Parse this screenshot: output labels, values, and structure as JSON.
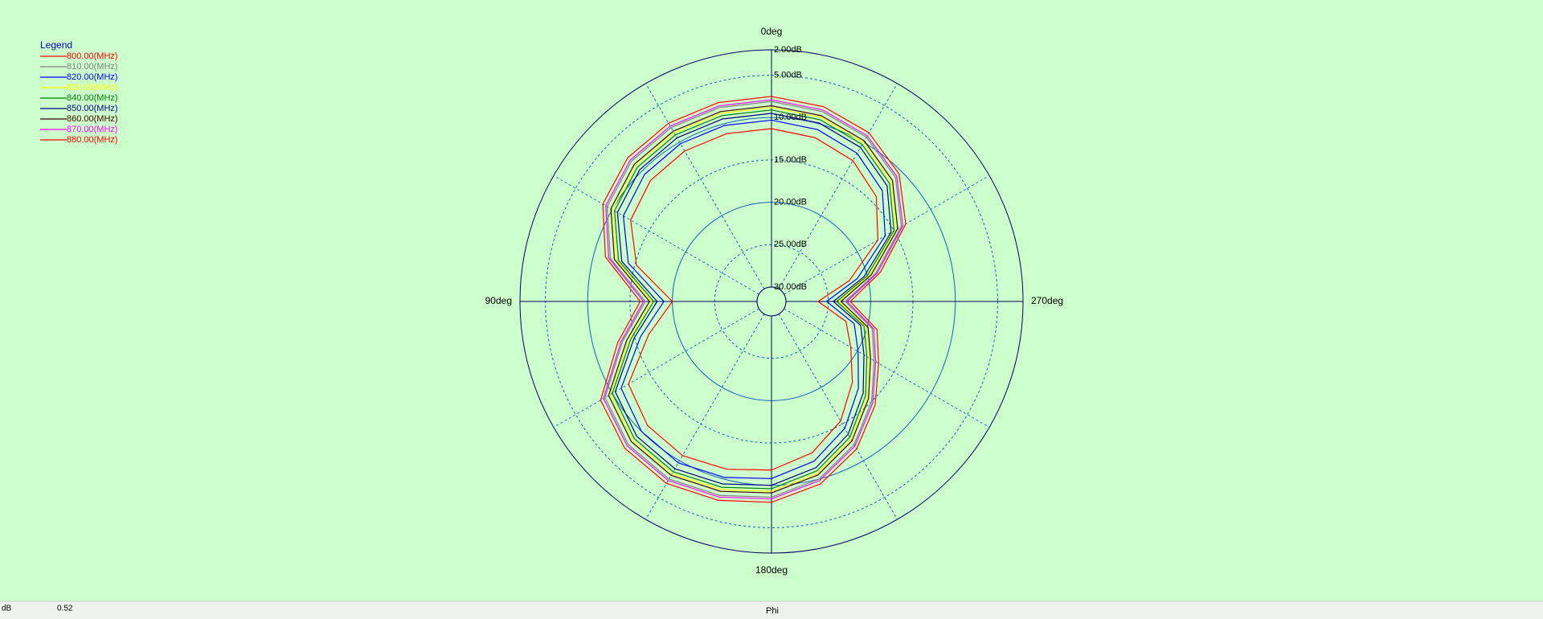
{
  "chart_data": {
    "type": "polar",
    "legend_title": "Legend",
    "legend_position": "upper-left",
    "xlabel": "Phi",
    "readout_unit": "dB",
    "readout_value": "0.52",
    "direction": "counterclockwise",
    "zero_location": "top",
    "theta": [
      0,
      15,
      30,
      45,
      60,
      75,
      90,
      105,
      120,
      135,
      150,
      165,
      180,
      195,
      210,
      225,
      240,
      255,
      270,
      285,
      300,
      315,
      330,
      345
    ],
    "rlim": [
      30,
      2
    ],
    "rticks": [
      {
        "value": 2,
        "label": "2.00dB"
      },
      {
        "value": 5,
        "label": "5.00dB"
      },
      {
        "value": 10,
        "label": "10.00dB"
      },
      {
        "value": 15,
        "label": "15.00dB"
      },
      {
        "value": 20,
        "label": "20.00dB"
      },
      {
        "value": 25,
        "label": "25.00dB"
      },
      {
        "value": 30,
        "label": "30.00dB"
      }
    ],
    "thetaticks": [
      {
        "value": 0,
        "label": "0deg"
      },
      {
        "value": 90,
        "label": "90deg"
      },
      {
        "value": 180,
        "label": "180deg"
      },
      {
        "value": 270,
        "label": "270deg"
      }
    ],
    "series": [
      {
        "name": "800.00(MHz)",
        "color": "#ff0000",
        "values": [
          7.5,
          7.4,
          7.4,
          7.7,
          8.7,
          11.4,
          16.2,
          12.9,
          8.4,
          7.2,
          6.9,
          7.4,
          8.0,
          9.4,
          11.6,
          14.4,
          17.1,
          18.8,
          22.4,
          18.4,
          13.4,
          10.4,
          8.7,
          7.9
        ]
      },
      {
        "name": "810.00(MHz)",
        "color": "#808080",
        "values": [
          8.1,
          8.0,
          8.0,
          8.3,
          9.3,
          12.0,
          16.8,
          13.5,
          9.0,
          7.8,
          7.5,
          8.0,
          8.6,
          10.0,
          12.2,
          15.0,
          17.7,
          19.4,
          23.0,
          19.0,
          14.0,
          11.0,
          9.3,
          8.5
        ]
      },
      {
        "name": "820.00(MHz)",
        "color": "#0000ff",
        "values": [
          10.3,
          10.2,
          10.2,
          10.5,
          11.5,
          14.2,
          19.0,
          15.7,
          11.2,
          10.0,
          9.7,
          10.2,
          10.8,
          12.2,
          14.4,
          17.2,
          19.9,
          21.6,
          25.2,
          21.2,
          16.2,
          13.2,
          11.5,
          10.7
        ]
      },
      {
        "name": "830.00(MHz)",
        "color": "#ffff00",
        "values": [
          8.8,
          8.7,
          8.7,
          9.0,
          10.0,
          12.7,
          17.5,
          14.2,
          9.7,
          8.5,
          8.2,
          8.7,
          9.3,
          10.7,
          12.9,
          15.7,
          18.4,
          20.1,
          23.7,
          19.7,
          14.7,
          11.7,
          10.0,
          9.2
        ]
      },
      {
        "name": "840.00(MHz)",
        "color": "#008000",
        "values": [
          9.1,
          9.0,
          9.0,
          9.3,
          10.3,
          13.0,
          17.8,
          14.5,
          10.0,
          8.8,
          8.5,
          9.0,
          9.6,
          11.0,
          13.2,
          16.0,
          18.7,
          20.4,
          24.0,
          20.0,
          15.0,
          12.0,
          10.3,
          9.5
        ]
      },
      {
        "name": "850.00(MHz)",
        "color": "#000080",
        "values": [
          9.5,
          9.4,
          9.4,
          9.7,
          10.7,
          13.4,
          18.2,
          14.9,
          10.4,
          9.2,
          8.9,
          9.4,
          10.0,
          11.4,
          13.6,
          16.4,
          19.1,
          20.8,
          24.4,
          20.4,
          15.4,
          12.4,
          10.7,
          9.9
        ]
      },
      {
        "name": "860.00(MHz)",
        "color": "#400000",
        "values": [
          8.6,
          8.5,
          8.5,
          8.8,
          9.8,
          12.5,
          17.3,
          14.0,
          9.5,
          8.3,
          8.0,
          8.5,
          9.1,
          10.5,
          12.7,
          15.5,
          18.2,
          19.9,
          23.5,
          19.5,
          14.5,
          11.5,
          9.8,
          9.0
        ]
      },
      {
        "name": "870.00(MHz)",
        "color": "#ff00ff",
        "values": [
          7.9,
          7.8,
          7.8,
          8.1,
          9.1,
          11.8,
          16.6,
          13.3,
          8.8,
          7.6,
          7.3,
          7.8,
          8.4,
          9.8,
          12.0,
          14.8,
          17.5,
          19.2,
          22.8,
          18.8,
          13.8,
          10.8,
          9.1,
          8.3
        ]
      },
      {
        "name": "880.00(MHz)",
        "color": "#ff0000",
        "values": [
          11.3,
          11.2,
          11.2,
          11.5,
          12.5,
          15.2,
          20.0,
          16.7,
          12.2,
          11.0,
          10.7,
          11.2,
          11.8,
          13.2,
          15.4,
          18.2,
          20.9,
          22.6,
          26.2,
          22.2,
          17.2,
          14.2,
          12.5,
          11.7
        ]
      }
    ]
  }
}
